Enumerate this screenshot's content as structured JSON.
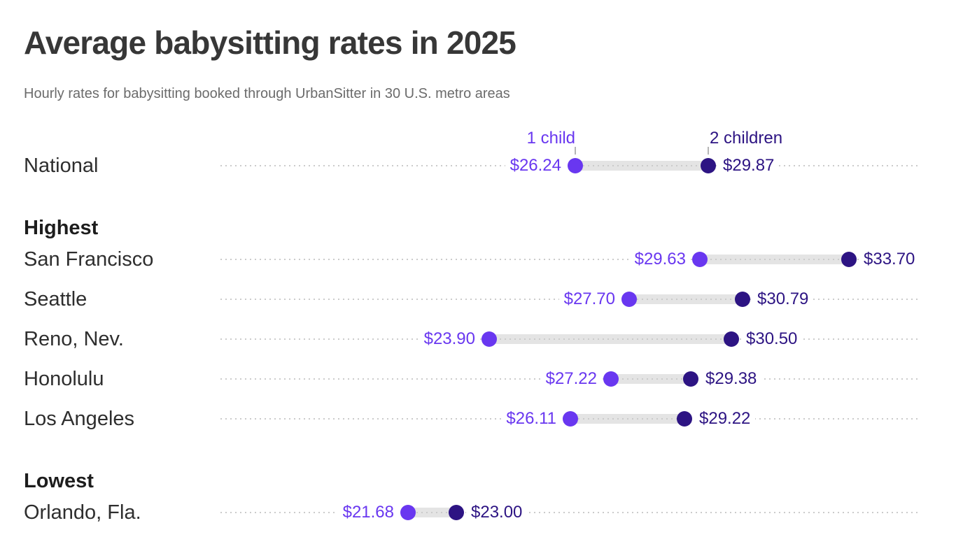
{
  "page": {
    "title": "Average babysitting rates in 2025",
    "subtitle": "Hourly rates for babysitting booked through UrbanSitter in 30 U.S. metro areas"
  },
  "chart_data": {
    "type": "dumbbell",
    "title": "Average babysitting rates in 2025",
    "subtitle": "Hourly rates for babysitting booked through UrbanSitter in 30 U.S. metro areas",
    "x_domain": [
      21.68,
      33.7
    ],
    "legend": [
      {
        "name": "1 child",
        "color": "#6937f0"
      },
      {
        "name": "2 children",
        "color": "#2d1483"
      }
    ],
    "legend_anchor_row": "National",
    "sections": [
      {
        "header": "",
        "rows": [
          {
            "label": "National",
            "one_child": 26.24,
            "two_children": 29.87,
            "one_child_display": "$26.24",
            "two_children_display": "$29.87"
          }
        ]
      },
      {
        "header": "Highest",
        "rows": [
          {
            "label": "San Francisco",
            "one_child": 29.63,
            "two_children": 33.7,
            "one_child_display": "$29.63",
            "two_children_display": "$33.70"
          },
          {
            "label": "Seattle",
            "one_child": 27.7,
            "two_children": 30.79,
            "one_child_display": "$27.70",
            "two_children_display": "$30.79"
          },
          {
            "label": "Reno, Nev.",
            "one_child": 23.9,
            "two_children": 30.5,
            "one_child_display": "$23.90",
            "two_children_display": "$30.50"
          },
          {
            "label": "Honolulu",
            "one_child": 27.22,
            "two_children": 29.38,
            "one_child_display": "$27.22",
            "two_children_display": "$29.38"
          },
          {
            "label": "Los Angeles",
            "one_child": 26.11,
            "two_children": 29.22,
            "one_child_display": "$26.11",
            "two_children_display": "$29.22"
          }
        ]
      },
      {
        "header": "Lowest",
        "rows": [
          {
            "label": "Orlando, Fla.",
            "one_child": 21.68,
            "two_children": 23.0,
            "one_child_display": "$21.68",
            "two_children_display": "$23.00"
          }
        ]
      }
    ]
  },
  "colors": {
    "one_child": "#6937f0",
    "two_children": "#2d1483",
    "connector_bar": "#e4e4e4",
    "leader_dots": "#cbcbcb",
    "title_text": "#373737",
    "subtitle_text": "#6b6b6b",
    "label_text": "#2e2e2e"
  }
}
